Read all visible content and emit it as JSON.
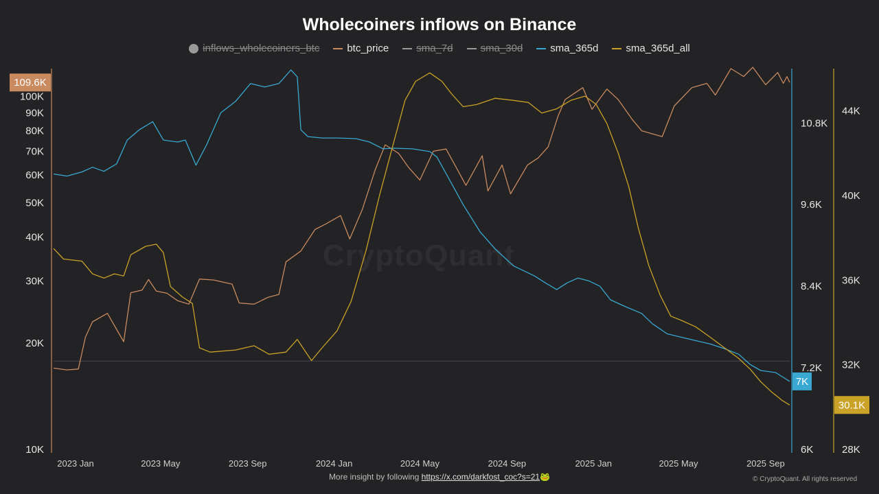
{
  "title": "Wholecoiners inflows on Binance",
  "legend": [
    {
      "name": "inflows_wholecoiners_btc",
      "color": "#9a9a9a",
      "hidden": true,
      "marker": "dot"
    },
    {
      "name": "btc_price",
      "color": "#c98a5f",
      "hidden": false,
      "marker": "line"
    },
    {
      "name": "sma_7d",
      "color": "#9a9a9a",
      "hidden": true,
      "marker": "line"
    },
    {
      "name": "sma_30d",
      "color": "#9a9a9a",
      "hidden": true,
      "marker": "line"
    },
    {
      "name": "sma_365d",
      "color": "#39a9d3",
      "hidden": false,
      "marker": "line"
    },
    {
      "name": "sma_365d_all",
      "color": "#c9a227",
      "hidden": false,
      "marker": "line"
    }
  ],
  "footer": {
    "text": "More insight by following ",
    "link": "https://x.com/darkfost_coc?s=21",
    "emoji": "🐸",
    "copyright": "© CryptoQuant. All rights reserved"
  },
  "watermark": "CryptoQuant",
  "colors": {
    "price": "#c98a5f",
    "sma365": "#39a9d3",
    "sma365all": "#c9a227"
  },
  "chart_data": {
    "type": "line",
    "x_ticks": [
      "2023 Jan",
      "2023 May",
      "2023 Sep",
      "2024 Jan",
      "2024 May",
      "2024 Sep",
      "2025 Jan",
      "2025 May",
      "2025 Sep"
    ],
    "x_range": [
      "2022-12-01",
      "2025-10-05"
    ],
    "axes": {
      "price": {
        "side": "left",
        "scale": "log",
        "ticks": [
          "10K",
          "20K",
          "30K",
          "40K",
          "50K",
          "60K",
          "70K",
          "80K",
          "90K",
          "100K"
        ],
        "tick_values": [
          10000,
          20000,
          30000,
          40000,
          50000,
          60000,
          70000,
          80000,
          90000,
          100000
        ],
        "range": [
          10000,
          120000
        ],
        "last_label": "109.6K",
        "last_value": 109600
      },
      "sma_365d": {
        "side": "right",
        "scale": "linear",
        "ticks": [
          "6K",
          "7.2K",
          "8.4K",
          "9.6K",
          "10.8K"
        ],
        "tick_values": [
          6000,
          7200,
          8400,
          9600,
          10800
        ],
        "range": [
          6000,
          11600
        ],
        "last_label": "7K",
        "last_value": 7000
      },
      "sma_365d_all": {
        "side": "right",
        "scale": "linear",
        "ticks": [
          "28K",
          "32K",
          "36K",
          "40K",
          "44K"
        ],
        "tick_values": [
          28000,
          32000,
          36000,
          40000,
          44000
        ],
        "range": [
          28000,
          46000
        ],
        "last_label": "30.1K",
        "last_value": 30100
      }
    },
    "series": [
      {
        "name": "btc_price",
        "axis": "price",
        "points": [
          [
            "2022-12-01",
            17000
          ],
          [
            "2022-12-20",
            16800
          ],
          [
            "2023-01-05",
            16900
          ],
          [
            "2023-01-15",
            20800
          ],
          [
            "2023-01-25",
            23000
          ],
          [
            "2023-02-15",
            24300
          ],
          [
            "2023-03-10",
            20200
          ],
          [
            "2023-03-20",
            27800
          ],
          [
            "2023-04-05",
            28300
          ],
          [
            "2023-04-14",
            30300
          ],
          [
            "2023-04-25",
            28100
          ],
          [
            "2023-05-10",
            27700
          ],
          [
            "2023-05-25",
            26400
          ],
          [
            "2023-06-10",
            25800
          ],
          [
            "2023-06-25",
            30400
          ],
          [
            "2023-07-15",
            30200
          ],
          [
            "2023-08-10",
            29400
          ],
          [
            "2023-08-20",
            26000
          ],
          [
            "2023-09-10",
            25800
          ],
          [
            "2023-09-30",
            27000
          ],
          [
            "2023-10-15",
            27500
          ],
          [
            "2023-10-25",
            34000
          ],
          [
            "2023-11-15",
            36500
          ],
          [
            "2023-12-05",
            42000
          ],
          [
            "2023-12-20",
            43500
          ],
          [
            "2024-01-10",
            46000
          ],
          [
            "2024-01-23",
            39500
          ],
          [
            "2024-02-10",
            48000
          ],
          [
            "2024-02-28",
            62000
          ],
          [
            "2024-03-13",
            73000
          ],
          [
            "2024-04-01",
            69000
          ],
          [
            "2024-04-15",
            63000
          ],
          [
            "2024-05-01",
            58000
          ],
          [
            "2024-05-20",
            70000
          ],
          [
            "2024-06-07",
            71000
          ],
          [
            "2024-06-25",
            61000
          ],
          [
            "2024-07-05",
            56000
          ],
          [
            "2024-07-28",
            68000
          ],
          [
            "2024-08-05",
            54000
          ],
          [
            "2024-08-25",
            64000
          ],
          [
            "2024-09-06",
            53000
          ],
          [
            "2024-09-30",
            64000
          ],
          [
            "2024-10-15",
            67000
          ],
          [
            "2024-10-29",
            72000
          ],
          [
            "2024-11-12",
            88000
          ],
          [
            "2024-11-22",
            98000
          ],
          [
            "2024-12-17",
            106000
          ],
          [
            "2024-12-30",
            92000
          ],
          [
            "2025-01-20",
            105000
          ],
          [
            "2025-02-05",
            98000
          ],
          [
            "2025-02-25",
            86000
          ],
          [
            "2025-03-10",
            80000
          ],
          [
            "2025-04-08",
            77000
          ],
          [
            "2025-04-25",
            94000
          ],
          [
            "2025-05-20",
            106000
          ],
          [
            "2025-06-10",
            109000
          ],
          [
            "2025-06-22",
            101000
          ],
          [
            "2025-07-14",
            120000
          ],
          [
            "2025-08-01",
            114000
          ],
          [
            "2025-08-14",
            121000
          ],
          [
            "2025-09-01",
            108000
          ],
          [
            "2025-09-18",
            117000
          ],
          [
            "2025-09-26",
            109000
          ],
          [
            "2025-10-01",
            114000
          ],
          [
            "2025-10-05",
            109600
          ]
        ]
      },
      {
        "name": "sma_365d",
        "axis": "sma_365d",
        "points": [
          [
            "2022-12-01",
            10050
          ],
          [
            "2022-12-20",
            10020
          ],
          [
            "2023-01-10",
            10080
          ],
          [
            "2023-01-25",
            10150
          ],
          [
            "2023-02-10",
            10090
          ],
          [
            "2023-02-28",
            10200
          ],
          [
            "2023-03-15",
            10550
          ],
          [
            "2023-04-01",
            10700
          ],
          [
            "2023-04-20",
            10820
          ],
          [
            "2023-05-05",
            10550
          ],
          [
            "2023-05-25",
            10520
          ],
          [
            "2023-06-05",
            10550
          ],
          [
            "2023-06-20",
            10180
          ],
          [
            "2023-07-05",
            10480
          ],
          [
            "2023-07-25",
            10950
          ],
          [
            "2023-08-15",
            11120
          ],
          [
            "2023-09-05",
            11380
          ],
          [
            "2023-09-25",
            11330
          ],
          [
            "2023-10-15",
            11380
          ],
          [
            "2023-11-01",
            11580
          ],
          [
            "2023-11-10",
            11480
          ],
          [
            "2023-11-15",
            10700
          ],
          [
            "2023-11-25",
            10600
          ],
          [
            "2023-12-15",
            10580
          ],
          [
            "2024-01-05",
            10580
          ],
          [
            "2024-02-01",
            10570
          ],
          [
            "2024-02-20",
            10520
          ],
          [
            "2024-03-10",
            10420
          ],
          [
            "2024-03-25",
            10430
          ],
          [
            "2024-04-20",
            10420
          ],
          [
            "2024-05-15",
            10380
          ],
          [
            "2024-05-25",
            10300
          ],
          [
            "2024-06-10",
            10000
          ],
          [
            "2024-07-01",
            9600
          ],
          [
            "2024-07-25",
            9200
          ],
          [
            "2024-08-15",
            8950
          ],
          [
            "2024-09-10",
            8700
          ],
          [
            "2024-10-10",
            8550
          ],
          [
            "2024-10-25",
            8450
          ],
          [
            "2024-11-10",
            8350
          ],
          [
            "2024-11-25",
            8450
          ],
          [
            "2024-12-10",
            8520
          ],
          [
            "2024-12-25",
            8480
          ],
          [
            "2025-01-10",
            8400
          ],
          [
            "2025-01-25",
            8200
          ],
          [
            "2025-02-15",
            8100
          ],
          [
            "2025-03-10",
            8000
          ],
          [
            "2025-03-25",
            7850
          ],
          [
            "2025-04-15",
            7700
          ],
          [
            "2025-05-05",
            7650
          ],
          [
            "2025-05-25",
            7600
          ],
          [
            "2025-06-15",
            7550
          ],
          [
            "2025-07-05",
            7480
          ],
          [
            "2025-07-25",
            7400
          ],
          [
            "2025-08-10",
            7250
          ],
          [
            "2025-08-25",
            7160
          ],
          [
            "2025-09-15",
            7130
          ],
          [
            "2025-10-05",
            7000
          ]
        ]
      },
      {
        "name": "sma_365d_all",
        "axis": "sma_365d_all",
        "points": [
          [
            "2022-12-01",
            37500
          ],
          [
            "2022-12-15",
            37000
          ],
          [
            "2023-01-10",
            36900
          ],
          [
            "2023-01-25",
            36300
          ],
          [
            "2023-02-10",
            36100
          ],
          [
            "2023-02-25",
            36300
          ],
          [
            "2023-03-10",
            36200
          ],
          [
            "2023-03-20",
            37200
          ],
          [
            "2023-04-10",
            37600
          ],
          [
            "2023-04-25",
            37700
          ],
          [
            "2023-05-05",
            37300
          ],
          [
            "2023-05-15",
            35700
          ],
          [
            "2023-06-01",
            35200
          ],
          [
            "2023-06-15",
            34900
          ],
          [
            "2023-06-25",
            32800
          ],
          [
            "2023-07-10",
            32600
          ],
          [
            "2023-08-15",
            32700
          ],
          [
            "2023-09-10",
            32900
          ],
          [
            "2023-10-01",
            32500
          ],
          [
            "2023-10-25",
            32600
          ],
          [
            "2023-11-10",
            33200
          ],
          [
            "2023-11-20",
            32700
          ],
          [
            "2023-11-30",
            32200
          ],
          [
            "2023-12-15",
            32800
          ],
          [
            "2024-01-05",
            33600
          ],
          [
            "2024-01-25",
            35000
          ],
          [
            "2024-02-15",
            37400
          ],
          [
            "2024-03-05",
            40000
          ],
          [
            "2024-03-25",
            42500
          ],
          [
            "2024-04-10",
            44500
          ],
          [
            "2024-04-25",
            45400
          ],
          [
            "2024-05-15",
            45800
          ],
          [
            "2024-06-01",
            45400
          ],
          [
            "2024-06-15",
            44800
          ],
          [
            "2024-07-01",
            44200
          ],
          [
            "2024-07-20",
            44300
          ],
          [
            "2024-08-15",
            44600
          ],
          [
            "2024-09-10",
            44500
          ],
          [
            "2024-10-01",
            44400
          ],
          [
            "2024-10-20",
            43900
          ],
          [
            "2024-11-10",
            44100
          ],
          [
            "2024-11-30",
            44500
          ],
          [
            "2024-12-20",
            44700
          ],
          [
            "2025-01-05",
            44300
          ],
          [
            "2025-01-20",
            43400
          ],
          [
            "2025-02-05",
            42000
          ],
          [
            "2025-02-20",
            40400
          ],
          [
            "2025-03-05",
            38500
          ],
          [
            "2025-03-20",
            36700
          ],
          [
            "2025-04-05",
            35300
          ],
          [
            "2025-04-20",
            34300
          ],
          [
            "2025-05-05",
            34100
          ],
          [
            "2025-05-25",
            33800
          ],
          [
            "2025-06-15",
            33300
          ],
          [
            "2025-07-05",
            32800
          ],
          [
            "2025-07-25",
            32300
          ],
          [
            "2025-08-10",
            31800
          ],
          [
            "2025-08-25",
            31200
          ],
          [
            "2025-09-10",
            30700
          ],
          [
            "2025-09-25",
            30300
          ],
          [
            "2025-10-05",
            30100
          ]
        ]
      }
    ],
    "reference_line": {
      "axis": "price",
      "value": 17800
    }
  }
}
